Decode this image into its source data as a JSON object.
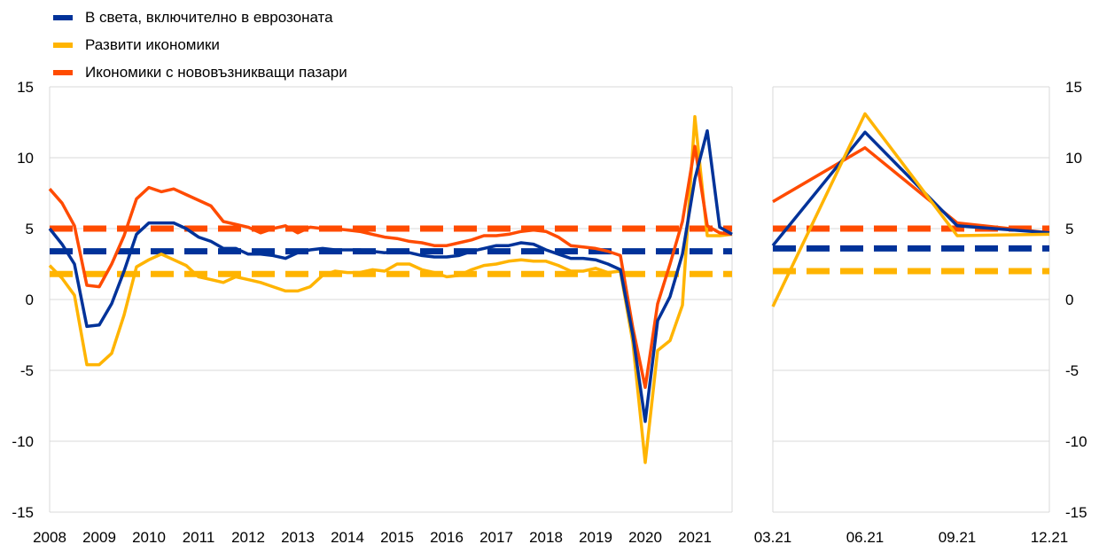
{
  "legend": [
    {
      "label": "В света, включително в еврозоната",
      "color": "#003299"
    },
    {
      "label": "Развити икономики",
      "color": "#FFB400"
    },
    {
      "label": "Икономики с нововъзникващи пазари",
      "color": "#FF4B00"
    }
  ],
  "chart_data": [
    {
      "type": "line",
      "title": "",
      "xlabel": "",
      "ylabel": "",
      "x_range": [
        2008.0,
        2021.75
      ],
      "ylim": [
        -15,
        15
      ],
      "y_ticks": [
        -15,
        -10,
        -5,
        0,
        5,
        10,
        15
      ],
      "x_tick_labels": [
        "2008",
        "2009",
        "2010",
        "2011",
        "2012",
        "2013",
        "2014",
        "2015",
        "2016",
        "2017",
        "2018",
        "2019",
        "2020",
        "2021"
      ],
      "grid": "horizontal",
      "legend_position": "top-left",
      "x": [
        2008.0,
        2008.25,
        2008.5,
        2008.75,
        2009.0,
        2009.25,
        2009.5,
        2009.75,
        2010.0,
        2010.25,
        2010.5,
        2010.75,
        2011.0,
        2011.25,
        2011.5,
        2011.75,
        2012.0,
        2012.25,
        2012.5,
        2012.75,
        2013.0,
        2013.25,
        2013.5,
        2013.75,
        2014.0,
        2014.25,
        2014.5,
        2014.75,
        2015.0,
        2015.25,
        2015.5,
        2015.75,
        2016.0,
        2016.25,
        2016.5,
        2016.75,
        2017.0,
        2017.25,
        2017.5,
        2017.75,
        2018.0,
        2018.25,
        2018.5,
        2018.75,
        2019.0,
        2019.25,
        2019.5,
        2019.75,
        2020.0,
        2020.25,
        2020.5,
        2020.75,
        2021.0,
        2021.25,
        2021.5,
        2021.75
      ],
      "series": [
        {
          "name": "В света, включително в еврозоната",
          "color": "#003299",
          "values": [
            5.0,
            3.9,
            2.5,
            -1.9,
            -1.8,
            -0.3,
            2.0,
            4.6,
            5.4,
            5.4,
            5.4,
            5.0,
            4.4,
            4.1,
            3.6,
            3.6,
            3.2,
            3.2,
            3.1,
            2.9,
            3.3,
            3.5,
            3.6,
            3.5,
            3.5,
            3.5,
            3.4,
            3.3,
            3.4,
            3.3,
            3.1,
            3.0,
            3.0,
            3.1,
            3.4,
            3.6,
            3.8,
            3.8,
            4.0,
            3.9,
            3.5,
            3.2,
            2.9,
            2.9,
            2.8,
            2.5,
            2.1,
            -2.5,
            -8.6,
            -1.5,
            0.2,
            3.2,
            8.5,
            11.9,
            5.1,
            4.6
          ],
          "reference": 3.4
        },
        {
          "name": "Развити икономики",
          "color": "#FFB400",
          "values": [
            2.4,
            1.5,
            0.3,
            -4.6,
            -4.6,
            -3.8,
            -1.1,
            2.3,
            2.8,
            3.2,
            2.8,
            2.4,
            1.6,
            1.4,
            1.2,
            1.6,
            1.4,
            1.2,
            0.9,
            0.6,
            0.6,
            0.9,
            1.7,
            2.0,
            1.9,
            1.9,
            2.1,
            2.0,
            2.5,
            2.5,
            2.1,
            1.9,
            1.6,
            1.7,
            2.1,
            2.4,
            2.5,
            2.7,
            2.8,
            2.7,
            2.7,
            2.4,
            2.0,
            2.0,
            2.2,
            1.9,
            2.0,
            -3.0,
            -11.5,
            -3.6,
            -2.9,
            -0.4,
            12.9,
            4.5,
            4.5,
            4.6
          ],
          "reference": 1.8
        },
        {
          "name": "Икономики с нововъзникващи пазари",
          "color": "#FF4B00",
          "values": [
            7.8,
            6.8,
            5.2,
            1.0,
            0.9,
            2.5,
            4.5,
            7.1,
            7.9,
            7.6,
            7.8,
            7.4,
            7.0,
            6.6,
            5.5,
            5.3,
            5.1,
            4.7,
            5.0,
            5.2,
            4.7,
            5.1,
            5.0,
            5.0,
            4.9,
            4.8,
            4.6,
            4.4,
            4.3,
            4.1,
            4.0,
            3.8,
            3.8,
            4.0,
            4.2,
            4.5,
            4.5,
            4.6,
            4.8,
            4.9,
            4.8,
            4.4,
            3.8,
            3.7,
            3.6,
            3.4,
            3.1,
            -2.0,
            -6.2,
            -0.3,
            2.5,
            5.5,
            10.8,
            5.2,
            4.7,
            4.6
          ],
          "reference": 5.0
        }
      ]
    },
    {
      "type": "line",
      "title": "",
      "xlabel": "",
      "ylabel": "",
      "categories": [
        "03.21",
        "06.21",
        "09.21",
        "12.21"
      ],
      "ylim": [
        -15,
        15
      ],
      "y_ticks": [
        -15,
        -10,
        -5,
        0,
        5,
        10,
        15
      ],
      "grid": "horizontal",
      "series": [
        {
          "name": "В света, включително в еврозоната",
          "color": "#003299",
          "values": [
            3.8,
            11.8,
            5.2,
            4.7
          ],
          "reference": 3.6
        },
        {
          "name": "Развити икономики",
          "color": "#FFB400",
          "values": [
            -0.5,
            13.1,
            4.5,
            4.6
          ],
          "reference": 2.0
        },
        {
          "name": "Икономики с нововъзникващи пазари",
          "color": "#FF4B00",
          "values": [
            6.9,
            10.7,
            5.4,
            4.7
          ],
          "reference": 5.0
        }
      ]
    }
  ]
}
